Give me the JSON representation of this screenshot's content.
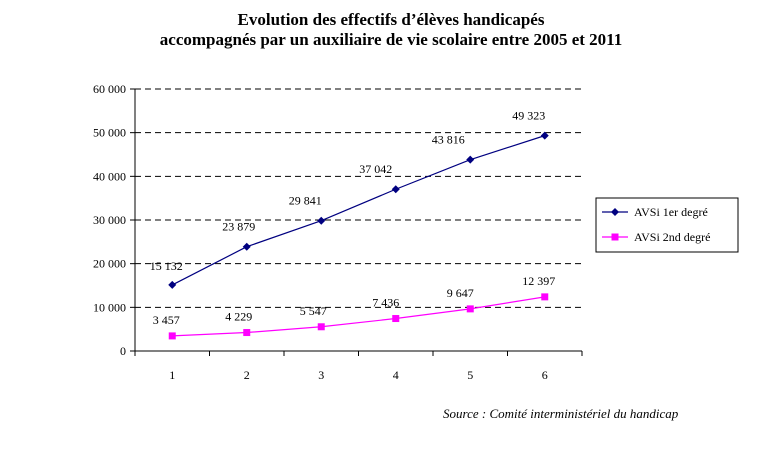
{
  "title_line1": "Evolution des effectifs d’élèves handicapés",
  "title_line2": "accompagnés par un auxiliaire de vie scolaire entre 2005 et 2011",
  "source": "Source : Comité interministériel du handicap",
  "chart_data": {
    "type": "line",
    "x": [
      1,
      2,
      3,
      4,
      5,
      6
    ],
    "categories": [
      "1",
      "2",
      "3",
      "4",
      "5",
      "6"
    ],
    "ylim": [
      0,
      60000
    ],
    "yticks": [
      0,
      10000,
      20000,
      30000,
      40000,
      50000,
      60000
    ],
    "ytick_labels": [
      "0",
      "10 000",
      "20 000",
      "30 000",
      "40 000",
      "50 000",
      "60 000"
    ],
    "grid": "horizontal-dashed",
    "legend_position": "right",
    "series": [
      {
        "name": "AVSi 1er degré",
        "color": "#000080",
        "marker": "diamond",
        "values": [
          15132,
          23879,
          29841,
          37042,
          43816,
          49323
        ],
        "labels": [
          "15 132",
          "23 879",
          "29 841",
          "37 042",
          "43 816",
          "49 323"
        ]
      },
      {
        "name": "AVSi 2nd degré",
        "color": "#ff00ff",
        "marker": "square",
        "values": [
          3457,
          4229,
          5547,
          7436,
          9647,
          12397
        ],
        "labels": [
          "3 457",
          "4 229",
          "5 547",
          "7 436",
          "9 647",
          "12 397"
        ]
      }
    ]
  }
}
